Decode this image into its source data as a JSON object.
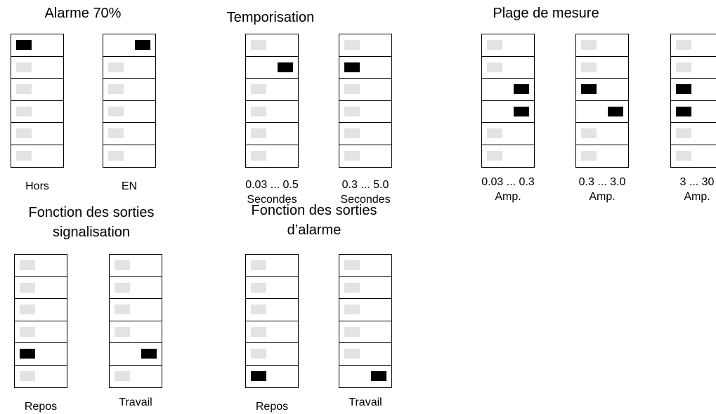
{
  "groups": [
    {
      "id": "alarme",
      "title": "Alarme 70%",
      "switches": [
        {
          "caption": [
            "Hors"
          ],
          "states": [
            "L",
            "-",
            "-",
            "-",
            "-",
            "-"
          ]
        },
        {
          "caption": [
            "EN"
          ],
          "states": [
            "R",
            "-",
            "-",
            "-",
            "-",
            "-"
          ]
        }
      ]
    },
    {
      "id": "temporisation",
      "title": "Temporisation",
      "switches": [
        {
          "caption": [
            "0.03 ... 0.5",
            "Secondes"
          ],
          "states": [
            "-",
            "R",
            "-",
            "-",
            "-",
            "-"
          ]
        },
        {
          "caption": [
            "0.3 ... 5.0",
            "Secondes"
          ],
          "states": [
            "-",
            "L",
            "-",
            "-",
            "-",
            "-"
          ]
        }
      ]
    },
    {
      "id": "plage",
      "title": "Plage de mesure",
      "switches": [
        {
          "caption": [
            "0.03 ... 0.3",
            "Amp."
          ],
          "states": [
            "-",
            "-",
            "R",
            "R",
            "-",
            "-"
          ]
        },
        {
          "caption": [
            "0.3 ... 3.0",
            "Amp."
          ],
          "states": [
            "-",
            "-",
            "L",
            "R",
            "-",
            "-"
          ]
        },
        {
          "caption": [
            "3 ... 30",
            "Amp."
          ],
          "states": [
            "-",
            "-",
            "L",
            "L",
            "-",
            "-"
          ]
        }
      ]
    },
    {
      "id": "signalisation",
      "title": [
        "Fonction des sorties",
        "signalisation"
      ],
      "switches": [
        {
          "caption": [
            "Repos"
          ],
          "states": [
            "-",
            "-",
            "-",
            "-",
            "L",
            "-"
          ]
        },
        {
          "caption": [
            "Travail"
          ],
          "states": [
            "-",
            "-",
            "-",
            "-",
            "R",
            "-"
          ]
        }
      ]
    },
    {
      "id": "sorties-alarme",
      "title": [
        "Fonction des sorties",
        "d’alarme"
      ],
      "switches": [
        {
          "caption": [
            "Repos"
          ],
          "states": [
            "-",
            "-",
            "-",
            "-",
            "-",
            "L"
          ]
        },
        {
          "caption": [
            "Travail"
          ],
          "states": [
            "-",
            "-",
            "-",
            "-",
            "-",
            "R"
          ]
        }
      ]
    }
  ]
}
